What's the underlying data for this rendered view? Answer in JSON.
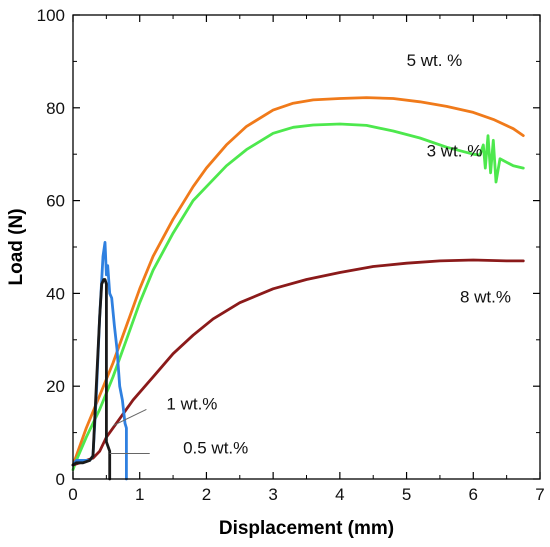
{
  "chart_data": {
    "type": "line",
    "xlabel": "Displacement (mm)",
    "ylabel": "Load (N)",
    "xlim": [
      0,
      7
    ],
    "ylim": [
      0,
      100
    ],
    "xticks": [
      0,
      1,
      2,
      3,
      4,
      5,
      6,
      7
    ],
    "yticks": [
      0,
      20,
      40,
      60,
      80,
      100
    ],
    "grid": false,
    "legend": "inline-labels",
    "series": [
      {
        "name": "5 wt. %",
        "color": "#f07a1a",
        "x": [
          0,
          0.05,
          0.2,
          0.4,
          0.6,
          0.8,
          1.0,
          1.2,
          1.5,
          1.8,
          2.0,
          2.3,
          2.6,
          3.0,
          3.3,
          3.6,
          4.0,
          4.4,
          4.8,
          5.2,
          5.6,
          6.0,
          6.3,
          6.6,
          6.75
        ],
        "y": [
          3,
          5,
          11,
          18,
          25,
          33,
          41,
          48,
          56,
          63,
          67,
          72,
          76,
          79.5,
          81,
          81.7,
          82,
          82.2,
          82,
          81.3,
          80.3,
          79,
          77.5,
          75.5,
          74
        ]
      },
      {
        "name": "3 wt. %",
        "color": "#4de84d",
        "x": [
          0,
          0.05,
          0.2,
          0.4,
          0.6,
          0.8,
          1.0,
          1.2,
          1.5,
          1.8,
          2.0,
          2.3,
          2.6,
          3.0,
          3.3,
          3.6,
          4.0,
          4.4,
          4.8,
          5.2,
          5.6,
          6.0,
          6.1,
          6.15,
          6.18,
          6.22,
          6.26,
          6.3,
          6.34,
          6.4,
          6.6,
          6.75
        ],
        "y": [
          2,
          4,
          9,
          15,
          22,
          30,
          38,
          45,
          53,
          60,
          63,
          67.5,
          71,
          74.5,
          75.8,
          76.3,
          76.5,
          76.2,
          75,
          73.5,
          71.5,
          70,
          69.8,
          72,
          67,
          74,
          66,
          73,
          64,
          69,
          67.5,
          67
        ]
      },
      {
        "name": "8 wt.%",
        "color": "#8b1a1a",
        "x": [
          0,
          0.1,
          0.2,
          0.3,
          0.4,
          0.5,
          0.7,
          0.9,
          1.2,
          1.5,
          1.8,
          2.1,
          2.5,
          3.0,
          3.5,
          4.0,
          4.5,
          5.0,
          5.5,
          6.0,
          6.5,
          6.75
        ],
        "y": [
          3,
          3.5,
          4,
          4.5,
          6,
          9,
          13,
          17,
          22,
          27,
          31,
          34.5,
          38,
          41,
          43,
          44.5,
          45.8,
          46.5,
          47,
          47.2,
          47,
          47
        ]
      },
      {
        "name": "1 wt.%",
        "color": "#2f80e0",
        "x": [
          0,
          0.05,
          0.15,
          0.25,
          0.3,
          0.35,
          0.4,
          0.45,
          0.48,
          0.5,
          0.52,
          0.55,
          0.58,
          0.62,
          0.66,
          0.7,
          0.74,
          0.78,
          0.8,
          0.8
        ],
        "y": [
          3,
          4,
          4,
          4,
          5,
          18,
          35,
          48,
          51,
          44,
          46,
          40,
          39,
          33,
          28,
          20,
          17,
          12,
          11,
          0
        ]
      },
      {
        "name": "0.5 wt.%",
        "color": "#1a1a1a",
        "x": [
          0,
          0.05,
          0.15,
          0.25,
          0.3,
          0.35,
          0.4,
          0.43,
          0.46,
          0.48,
          0.5,
          0.5,
          0.55,
          0.55
        ],
        "y": [
          3,
          3.5,
          3.5,
          4,
          5,
          20,
          35,
          42,
          43,
          43,
          42,
          8,
          6,
          0
        ]
      }
    ],
    "annotations": [
      {
        "text": "5 wt. %",
        "x": 5.0,
        "y": 89
      },
      {
        "text": "3 wt. %",
        "x": 5.3,
        "y": 69.5
      },
      {
        "text": "8 wt.%",
        "x": 5.8,
        "y": 38
      },
      {
        "text": "1 wt.%",
        "x": 1.4,
        "y": 15
      },
      {
        "text": "0.5 wt.%",
        "x": 1.65,
        "y": 5.5
      }
    ],
    "leader_lines": [
      {
        "x": [
          0.6,
          1.1
        ],
        "y": [
          11.5,
          15
        ]
      },
      {
        "x": [
          0.55,
          1.15
        ],
        "y": [
          5.5,
          5.5
        ]
      }
    ]
  }
}
